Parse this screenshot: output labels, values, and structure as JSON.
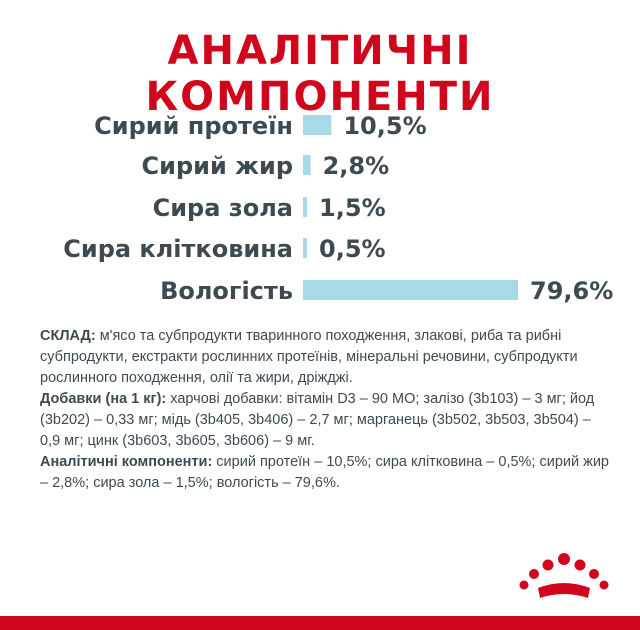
{
  "title": "АНАЛІТИЧНІ КОМПОНЕНТИ",
  "colors": {
    "accent": "#d0061c",
    "bar": "#a8d9e6",
    "label_text": "#3e4a52"
  },
  "chart_data": {
    "type": "bar",
    "orientation": "horizontal",
    "categories": [
      "Сирий протеїн",
      "Сирий жир",
      "Сира зола",
      "Сира клітковина",
      "Вологість"
    ],
    "values": [
      10.5,
      2.8,
      1.5,
      0.5,
      79.6
    ],
    "value_labels": [
      "10,5%",
      "2,8%",
      "1,5%",
      "0,5%",
      "79,6%"
    ],
    "unit": "%",
    "grid": false,
    "legend": "none"
  },
  "composition": {
    "paragraphs": [
      {
        "label": "СКЛАД:",
        "text": " м'ясо та субпродукти тваринного походження, злакові, риба та рибні субпродукти, екстракти рослинних протеїнів, мінеральні речовини, субпродукти рослинного походження, олії та жири, дріжджі."
      },
      {
        "label": "Добавки (на 1 кг):",
        "text": " харчові добавки: вітамін D3 – 90 МО; залізо (3b103) – 3 мг; йод (3b202) – 0,33 мг; мідь (3b405, 3b406) – 2,7 мг; марганець (3b502, 3b503, 3b504) – 0,9 мг; цинк (3b603, 3b605, 3b606) – 9 мг."
      },
      {
        "label": "Аналітичні компоненти:",
        "text": " сирий протеїн – 10,5%; сира клітковина – 0,5%; сирий жир – 2,8%; сира зола – 1,5%; вологість – 79,6%."
      }
    ]
  },
  "logo": {
    "icon": "royal-crown-icon"
  }
}
